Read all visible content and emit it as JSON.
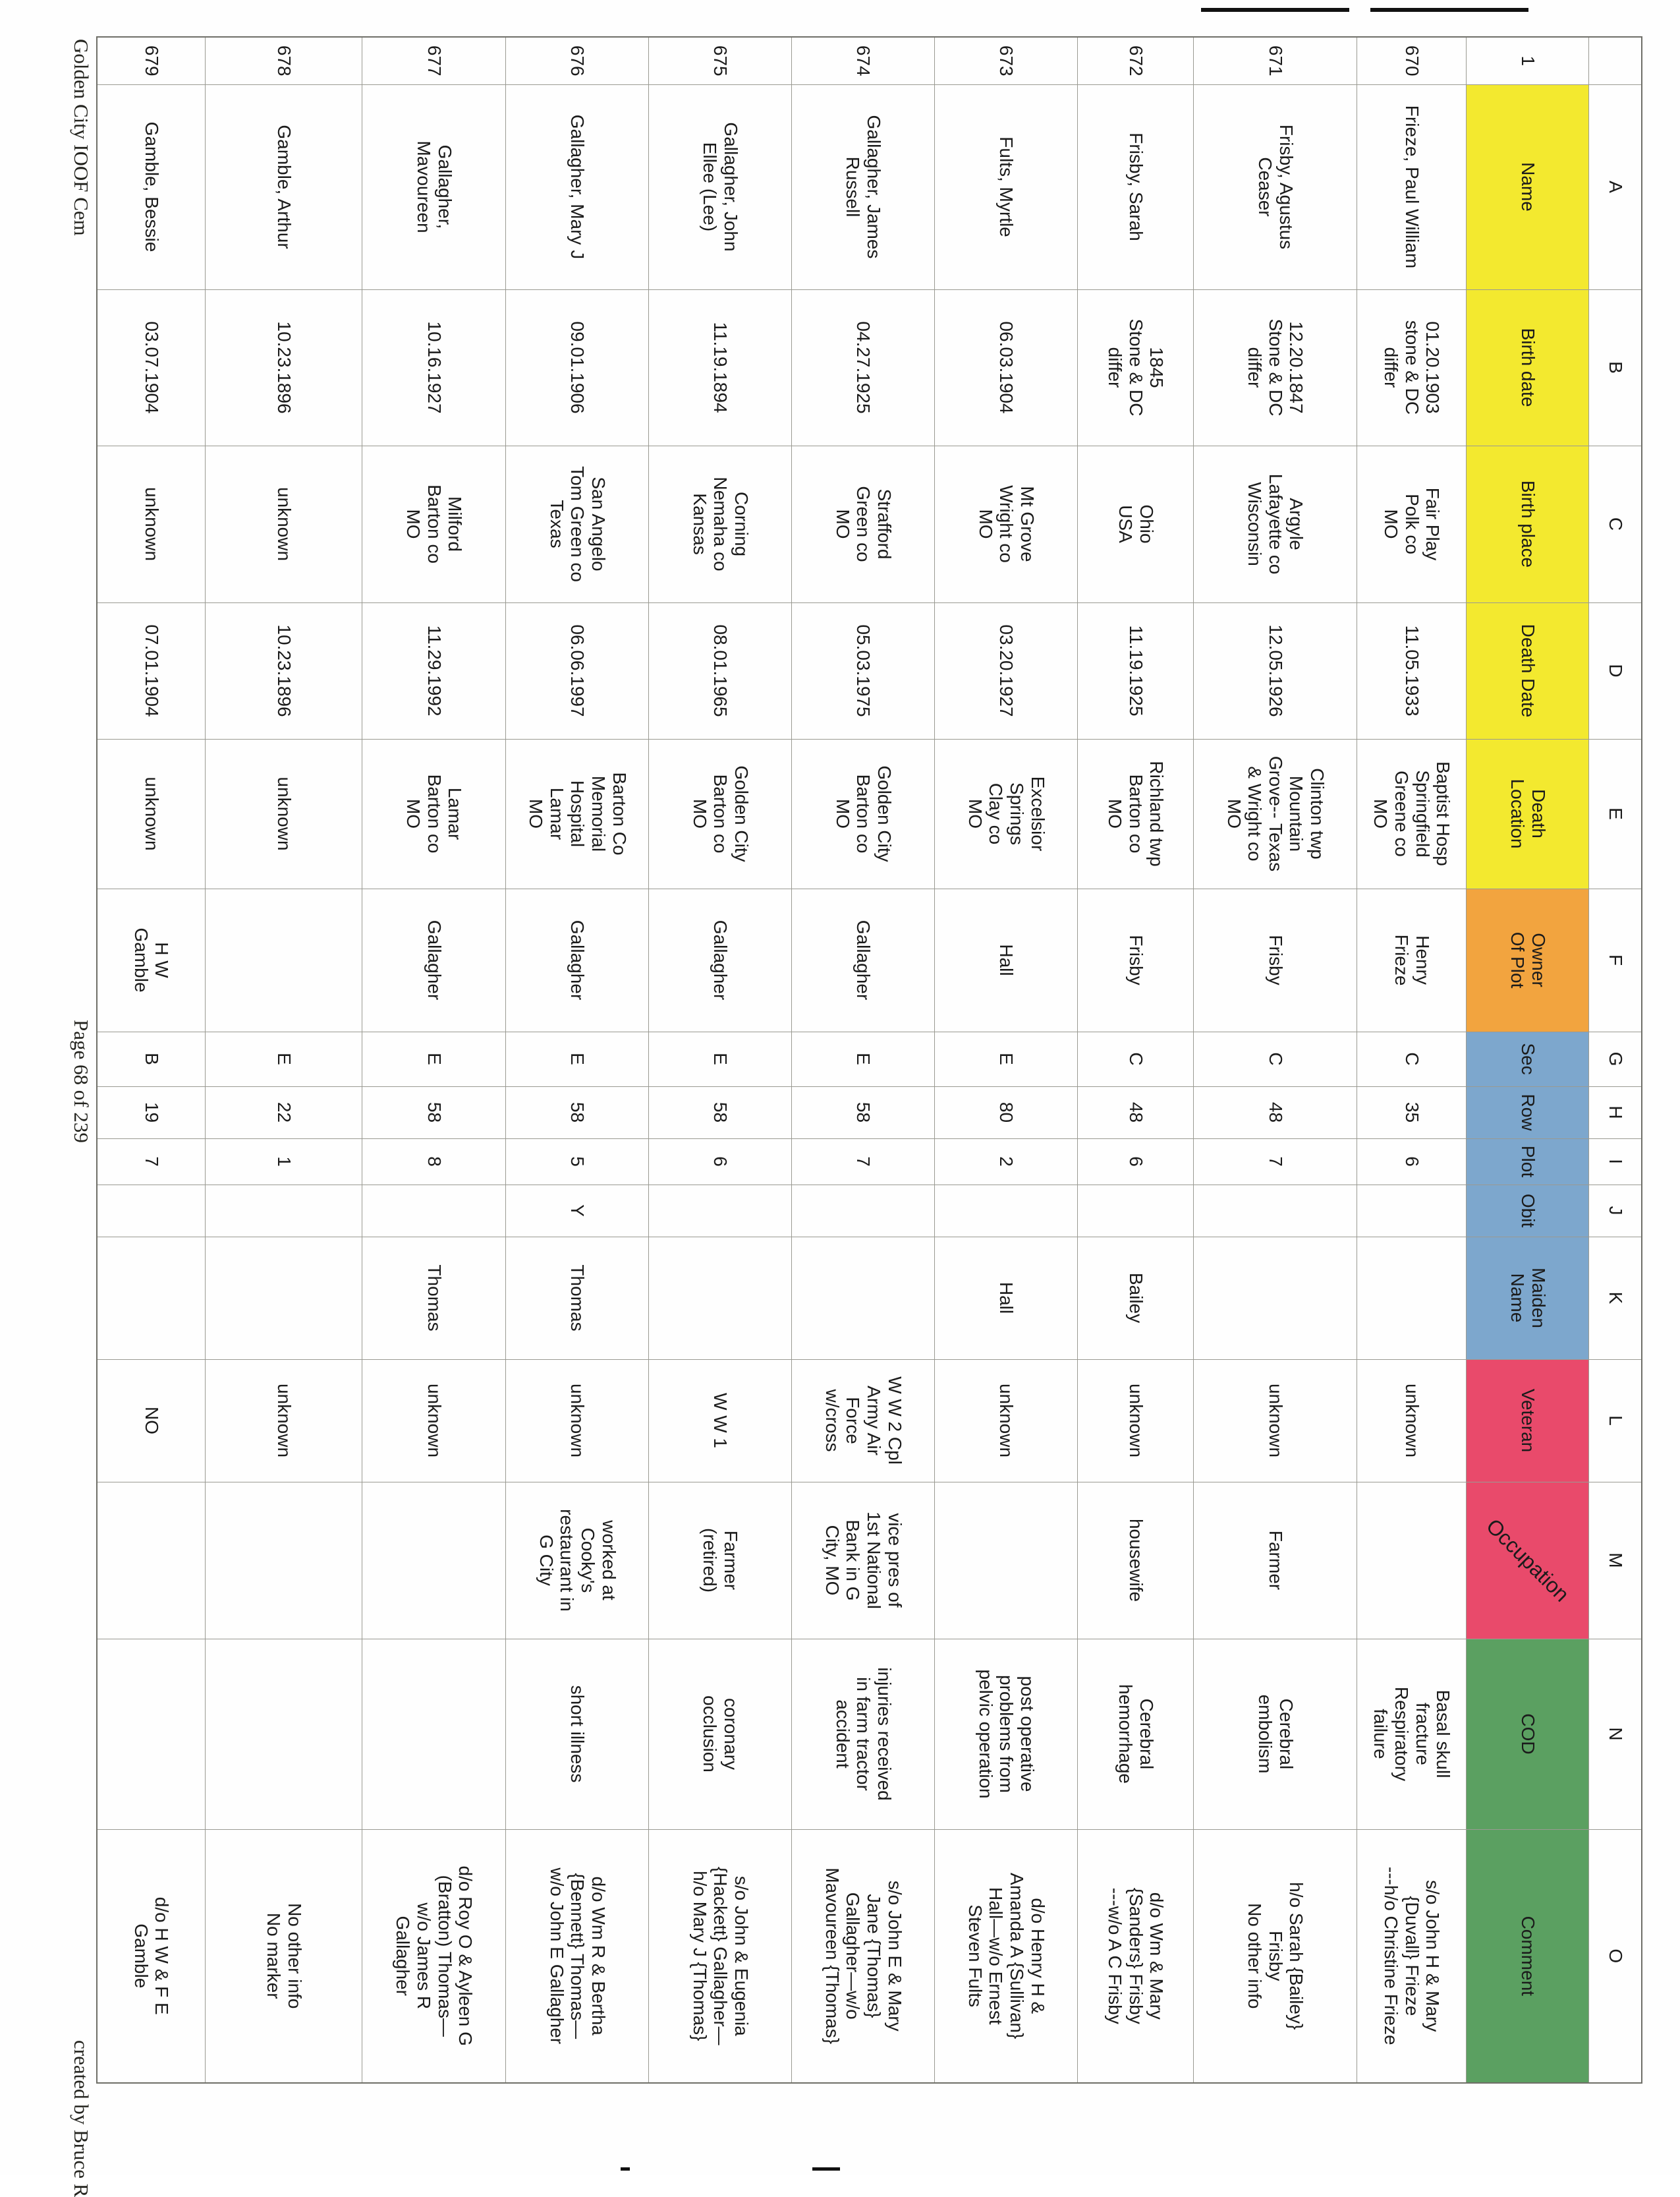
{
  "sheet": {
    "corner": "",
    "header_row_number": "1",
    "column_letters": [
      "A",
      "B",
      "C",
      "D",
      "E",
      "F",
      "G",
      "H",
      "I",
      "J",
      "K",
      "L",
      "M",
      "N",
      "O"
    ],
    "headers": [
      "Name",
      "Birth date",
      "Birth place",
      "Death Date",
      "Death\nLocation",
      "Owner\nOf Plot",
      "Sec",
      "Row",
      "Plot",
      "Obit",
      "Maiden\nName",
      "Veteran",
      "Occupation",
      "COD",
      "Comment"
    ],
    "colors": {
      "yellow": "#f3e92f",
      "orange": "#f2a43f",
      "blue": "#7da7cd",
      "red": "#e94a6b",
      "green": "#5ba061"
    },
    "rows": [
      {
        "number": "670",
        "cells": [
          "Frieze, Paul William",
          "01.20.1903\nstone & DC\ndiffer",
          "Fair Play\nPolk co\nMO",
          "11.05.1933",
          "Baptist Hosp\nSpringfield\nGreene co\nMO",
          "Henry\nFrieze",
          "C",
          "35",
          "6",
          "",
          "",
          "unknown",
          "",
          "Basal skull\nfracture\nRespiratory\nfailure",
          "s/o John H & Mary\n{Duvall} Frieze\n---h/o Christine Frieze"
        ]
      },
      {
        "number": "671",
        "cells": [
          "Frisby, Agustus\nCeaser",
          "12.20.1847\nStone & DC\ndiffer",
          "Argyle\nLafayette co\nWisconsin",
          "12.05.1926",
          "Clinton twp\nMountain\nGrove-- Texas\n& Wright co\nMO",
          "Frisby",
          "C",
          "48",
          "7",
          "",
          "",
          "unknown",
          "Farmer",
          "Cerebral\nembolism",
          "h/o Sarah {Bailey}\nFrisby\nNo other info"
        ]
      },
      {
        "number": "672",
        "cells": [
          "Frisby, Sarah",
          "1845\nStone & DC\ndiffer",
          "Ohio\nUSA",
          "11.19.1925",
          "Richland twp\nBarton co\nMO",
          "Frisby",
          "C",
          "48",
          "6",
          "",
          "Bailey",
          "unknown",
          "housewife",
          "Cerebral\nhemorrhage",
          "d/o Wm & Mary\n{Sanders} Frisby\n---w/o A C Frisby"
        ]
      },
      {
        "number": "673",
        "cells": [
          "Fults, Myrtle",
          "06.03.1904",
          "Mt Grove\nWright co\nMO",
          "03.20.1927",
          "Excelsior\nSprings\nClay co\nMO",
          "Hall",
          "E",
          "80",
          "2",
          "",
          "Hall",
          "unknown",
          "",
          "post operative\nproblems from\npelvic operation",
          "d/o Henry H &\nAmanda A {Sullivan}\nHall—w/o Ernest\nSteven Fults"
        ]
      },
      {
        "number": "674",
        "cells": [
          "Gallagher, James\nRussell",
          "04.27.1925",
          "Strafford\nGreen co\nMO",
          "05.03.1975",
          "Golden City\nBarton co\nMO",
          "Gallagher",
          "E",
          "58",
          "7",
          "",
          "",
          "W W 2 Cpl\nArmy Air\nForce\nw/cross",
          "vice pres of\n1st National\nBank in G\nCity, MO",
          "injuries received\nin farm tractor\naccident",
          "s/o John E & Mary\nJane {Thomas}\nGallagher—w/o\nMavoureen {Thomas}"
        ]
      },
      {
        "number": "675",
        "cells": [
          "Gallagher, John\nEllee (Lee)",
          "11.19.1894",
          "Corning\nNemaha co\nKansas",
          "08.01.1965",
          "Golden City\nBarton co\nMO",
          "Gallagher",
          "E",
          "58",
          "6",
          "",
          "",
          "W W 1",
          "Farmer\n(retired)",
          "coronary\nocclusion",
          "s/o John & Eugenia\n{Hackett} Gallagher—\nh/o Mary J {Thomas}"
        ]
      },
      {
        "number": "676",
        "cells": [
          "Gallagher, Mary J",
          "09.01.1906",
          "San Angelo\nTom Green co\nTexas",
          "06.06.1997",
          "Barton Co\nMemorial\nHospital\nLamar\nMO",
          "Gallagher",
          "E",
          "58",
          "5",
          "Y",
          "Thomas",
          "unknown",
          "worked at\nCooky's\nrestaurant in\nG City",
          "short illness",
          "d/o Wm R & Bertha\n{Bennett} Thomas—\nw/o John E Gallagher"
        ]
      },
      {
        "number": "677",
        "cells": [
          "Gallagher,\nMavoureen",
          "10.16.1927",
          "Milford\nBarton co\nMO",
          "11.29.1992",
          "Lamar\nBarton co\nMO",
          "Gallagher",
          "E",
          "58",
          "8",
          "",
          "Thomas",
          "unknown",
          "",
          "",
          "d/o Roy O & Ayleen G\n(Bratton) Thomas—\nw/o James R\nGallagher"
        ]
      },
      {
        "number": "678",
        "cells": [
          "Gamble, Arthur",
          "10.23.1896",
          "unknown",
          "10.23.1896",
          "unknown",
          "",
          "E",
          "22",
          "1",
          "",
          "",
          "unknown",
          "",
          "",
          "No other info\nNo marker"
        ]
      },
      {
        "number": "679",
        "cells": [
          "Gamble, Bessie",
          "03.07.1904",
          "unknown",
          "07.01.1904",
          "unknown",
          "H W\nGamble",
          "B",
          "19",
          "7",
          "",
          "",
          "NO",
          "",
          "",
          "d/o H W & F E\nGamble"
        ]
      }
    ],
    "footer": {
      "left": "Golden City IOOF Cem",
      "center": "Page 68 of 239",
      "right": "created by Bruce R"
    }
  }
}
